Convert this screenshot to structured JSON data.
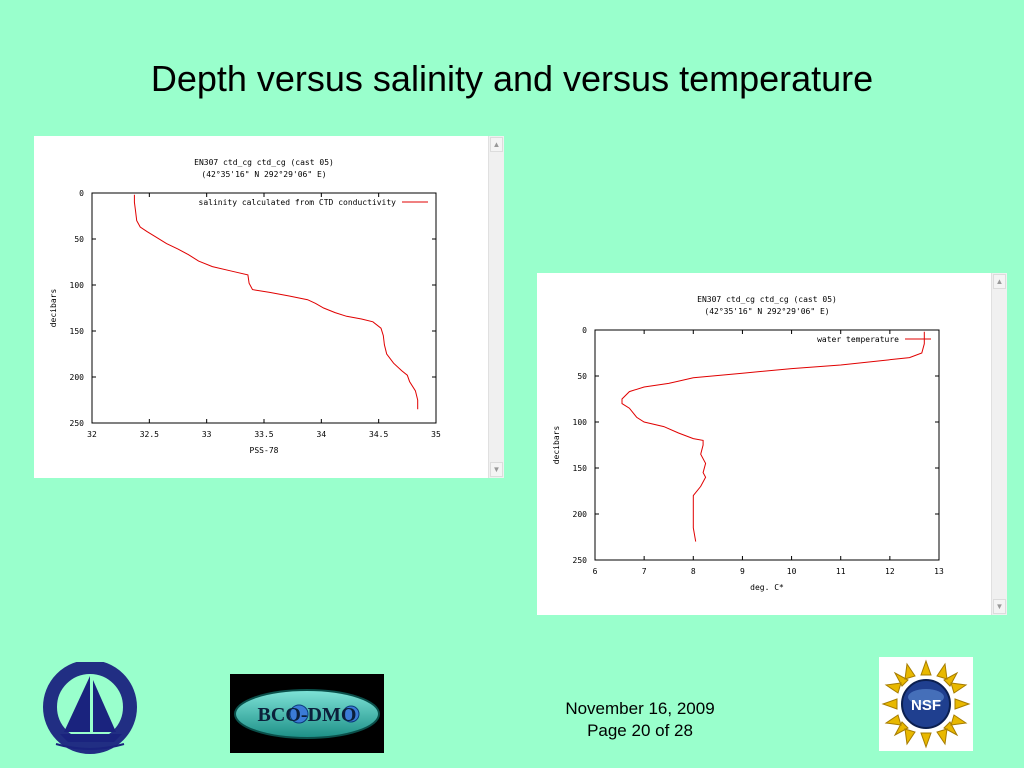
{
  "slide": {
    "title": "Depth versus salinity and versus temperature"
  },
  "footer": {
    "date": "November 16, 2009",
    "page": "Page 20 of 28"
  },
  "logos": {
    "whoi": {
      "name": "whoi-logo",
      "text": "WOODS HOLE OCEANOGRAPHIC INSTITUTION 1930"
    },
    "bcodmo": {
      "name": "bco-dmo-logo",
      "text": "BCO-DMO"
    },
    "nsf": {
      "name": "nsf-logo",
      "text": "NSF"
    }
  },
  "chart_data": [
    {
      "type": "line",
      "title": "EN307 ctd_cg ctd_cg (cast 05)",
      "subtitle": "(42°35'16\" N 292°29'06\" E)",
      "xlabel": "PSS-78",
      "ylabel": "decibars",
      "xlim": [
        32,
        35
      ],
      "ylim": [
        250,
        0
      ],
      "xticks": [
        "32",
        "32.5",
        "33",
        "33.5",
        "34",
        "34.5",
        "35"
      ],
      "yticks": [
        "0",
        "50",
        "100",
        "150",
        "200",
        "250"
      ],
      "legend_position": "top-right",
      "grid": false,
      "series": [
        {
          "name": "salinity calculated from CTD conductivity",
          "color": "#e00000",
          "x": [
            32.37,
            32.37,
            32.38,
            32.39,
            32.42,
            32.48,
            32.56,
            32.65,
            32.75,
            32.84,
            32.93,
            33.05,
            33.22,
            33.36,
            33.37,
            33.4,
            33.55,
            33.72,
            33.88,
            33.95,
            34.02,
            34.12,
            34.22,
            34.35,
            34.45,
            34.52,
            34.54,
            34.55,
            34.57,
            34.63,
            34.7,
            34.75,
            34.77,
            34.82,
            34.84,
            34.84
          ],
          "y": [
            2,
            10,
            20,
            30,
            37,
            42,
            48,
            55,
            61,
            67,
            74,
            80,
            85,
            89,
            98,
            105,
            108,
            112,
            116,
            120,
            125,
            130,
            134,
            137,
            140,
            147,
            155,
            165,
            175,
            185,
            193,
            198,
            205,
            215,
            225,
            235
          ]
        }
      ]
    },
    {
      "type": "line",
      "title": "EN307 ctd_cg ctd_cg (cast 05)",
      "subtitle": "(42°35'16\" N 292°29'06\" E)",
      "xlabel": "deg. C*",
      "ylabel": "decibars",
      "xlim": [
        6,
        13
      ],
      "ylim": [
        250,
        0
      ],
      "xticks": [
        "6",
        "7",
        "8",
        "9",
        "10",
        "11",
        "12",
        "13"
      ],
      "yticks": [
        "0",
        "50",
        "100",
        "150",
        "200",
        "250"
      ],
      "legend_position": "top-right",
      "grid": false,
      "series": [
        {
          "name": "water temperature",
          "color": "#e00000",
          "x": [
            12.7,
            12.7,
            12.65,
            12.4,
            11.0,
            10.0,
            9.0,
            8.0,
            7.5,
            7.0,
            6.7,
            6.55,
            6.55,
            6.7,
            6.85,
            7.0,
            7.4,
            7.7,
            8.0,
            8.2,
            8.2,
            8.15,
            8.25,
            8.2,
            8.25,
            8.15,
            8.0,
            8.0,
            8.0,
            8.0,
            8.05
          ],
          "y": [
            2,
            15,
            25,
            30,
            38,
            42,
            47,
            52,
            58,
            62,
            67,
            75,
            80,
            85,
            95,
            100,
            105,
            112,
            118,
            120,
            125,
            135,
            145,
            155,
            160,
            170,
            180,
            195,
            205,
            215,
            230
          ]
        }
      ]
    }
  ]
}
